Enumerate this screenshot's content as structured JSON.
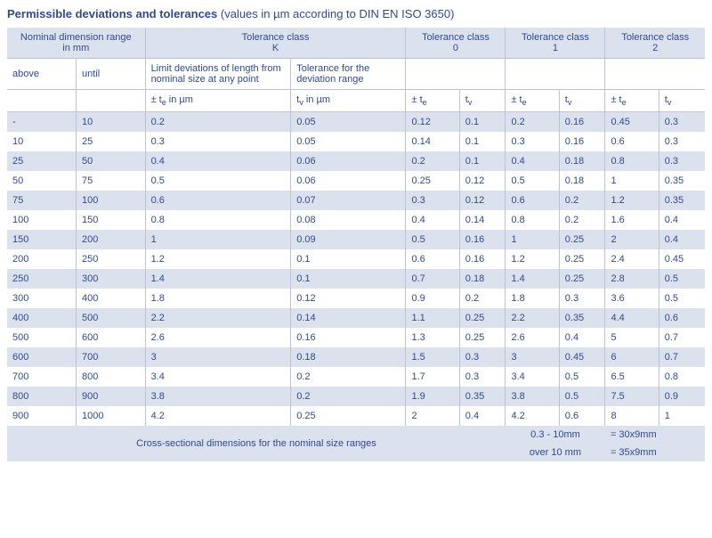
{
  "title": {
    "main": "Permissible deviations and tolerances",
    "note": " (values in µm according to DIN EN ISO 3650)",
    "color": "#2f4a8f"
  },
  "colors": {
    "header_bg": "#dce1ee",
    "row_alt_bg": "#dce1ee",
    "row_bg": "#ffffff",
    "border": "#bcc3d6",
    "text": "#2f4a8f"
  },
  "headers": {
    "nominal": "Nominal dimension range\nin mm",
    "classK": "Tolerance class\nK",
    "class0": "Tolerance class\n0",
    "class1": "Tolerance class\n1",
    "class2": "Tolerance class\n2",
    "above": "above",
    "until": "until",
    "limit_dev": "Limit deviations of length from nominal size at any point",
    "tol_range": "Tolerance for the deviation range",
    "te": "± t",
    "te_sub": "e",
    "te_unit": " in µm",
    "tv": "t",
    "tv_sub": "v",
    "tv_unit": " in µm",
    "te_s": "± t",
    "tv_s": "t"
  },
  "rows": [
    {
      "above": "-",
      "until": "10",
      "kte": "0.2",
      "ktv": "0.05",
      "c0te": "0.12",
      "c0tv": "0.1",
      "c1te": "0.2",
      "c1tv": "0.16",
      "c2te": "0.45",
      "c2tv": "0.3"
    },
    {
      "above": "10",
      "until": "25",
      "kte": "0.3",
      "ktv": "0.05",
      "c0te": "0.14",
      "c0tv": "0.1",
      "c1te": "0.3",
      "c1tv": "0.16",
      "c2te": "0.6",
      "c2tv": "0.3"
    },
    {
      "above": "25",
      "until": "50",
      "kte": "0.4",
      "ktv": "0.06",
      "c0te": "0.2",
      "c0tv": "0.1",
      "c1te": "0.4",
      "c1tv": "0.18",
      "c2te": "0.8",
      "c2tv": "0.3"
    },
    {
      "above": "50",
      "until": "75",
      "kte": "0.5",
      "ktv": "0.06",
      "c0te": "0.25",
      "c0tv": "0.12",
      "c1te": "0.5",
      "c1tv": "0.18",
      "c2te": "1",
      "c2tv": "0.35"
    },
    {
      "above": "75",
      "until": "100",
      "kte": "0.6",
      "ktv": "0.07",
      "c0te": "0.3",
      "c0tv": "0.12",
      "c1te": "0.6",
      "c1tv": "0.2",
      "c2te": "1.2",
      "c2tv": "0.35"
    },
    {
      "above": "100",
      "until": "150",
      "kte": "0.8",
      "ktv": "0.08",
      "c0te": "0.4",
      "c0tv": "0.14",
      "c1te": "0.8",
      "c1tv": "0.2",
      "c2te": "1.6",
      "c2tv": "0.4"
    },
    {
      "above": "150",
      "until": "200",
      "kte": "1",
      "ktv": "0.09",
      "c0te": "0.5",
      "c0tv": "0.16",
      "c1te": "1",
      "c1tv": "0.25",
      "c2te": "2",
      "c2tv": "0.4"
    },
    {
      "above": "200",
      "until": "250",
      "kte": "1.2",
      "ktv": "0.1",
      "c0te": "0.6",
      "c0tv": "0.16",
      "c1te": "1.2",
      "c1tv": "0.25",
      "c2te": "2.4",
      "c2tv": "0.45"
    },
    {
      "above": "250",
      "until": "300",
      "kte": "1.4",
      "ktv": "0.1",
      "c0te": "0.7",
      "c0tv": "0.18",
      "c1te": "1.4",
      "c1tv": "0.25",
      "c2te": "2.8",
      "c2tv": "0.5"
    },
    {
      "above": "300",
      "until": "400",
      "kte": "1.8",
      "ktv": "0.12",
      "c0te": "0.9",
      "c0tv": "0.2",
      "c1te": "1.8",
      "c1tv": "0.3",
      "c2te": "3.6",
      "c2tv": "0.5"
    },
    {
      "above": "400",
      "until": "500",
      "kte": "2.2",
      "ktv": "0.14",
      "c0te": "1.1",
      "c0tv": "0.25",
      "c1te": "2.2",
      "c1tv": "0.35",
      "c2te": "4.4",
      "c2tv": "0.6"
    },
    {
      "above": "500",
      "until": "600",
      "kte": "2.6",
      "ktv": "0.16",
      "c0te": "1.3",
      "c0tv": "0.25",
      "c1te": "2.6",
      "c1tv": "0.4",
      "c2te": "5",
      "c2tv": "0.7"
    },
    {
      "above": "600",
      "until": "700",
      "kte": "3",
      "ktv": "0.18",
      "c0te": "1.5",
      "c0tv": "0.3",
      "c1te": "3",
      "c1tv": "0.45",
      "c2te": "6",
      "c2tv": "0.7"
    },
    {
      "above": "700",
      "until": "800",
      "kte": "3.4",
      "ktv": "0.2",
      "c0te": "1.7",
      "c0tv": "0.3",
      "c1te": "3.4",
      "c1tv": "0.5",
      "c2te": "6.5",
      "c2tv": "0.8"
    },
    {
      "above": "800",
      "until": "900",
      "kte": "3.8",
      "ktv": "0.2",
      "c0te": "1.9",
      "c0tv": "0.35",
      "c1te": "3.8",
      "c1tv": "0.5",
      "c2te": "7.5",
      "c2tv": "0.9"
    },
    {
      "above": "900",
      "until": "1000",
      "kte": "4.2",
      "ktv": "0.25",
      "c0te": "2",
      "c0tv": "0.4",
      "c1te": "4.2",
      "c1tv": "0.6",
      "c2te": "8",
      "c2tv": "1"
    }
  ],
  "footer": {
    "label": "Cross-sectional dimensions for the nominal size ranges",
    "r1a": "0.3 - 10mm",
    "r1b": "= 30x9mm",
    "r2a": "over 10 mm",
    "r2b": "= 35x9mm"
  }
}
